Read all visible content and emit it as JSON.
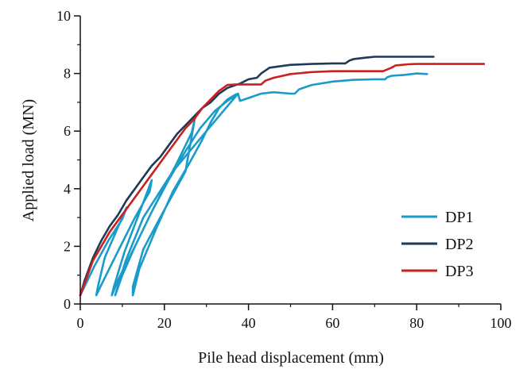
{
  "chart_data": {
    "type": "line",
    "title": "",
    "xlabel": "Pile head displacement (mm)",
    "ylabel": "Applied load  (MN)",
    "xlim": [
      0,
      100
    ],
    "ylim": [
      0,
      10
    ],
    "xticks": [
      0,
      20,
      40,
      60,
      80,
      100
    ],
    "yticks": [
      0,
      2,
      4,
      6,
      8,
      10
    ],
    "xtick_labels": [
      "0",
      "20",
      "40",
      "60",
      "80",
      "100"
    ],
    "ytick_labels": [
      "0",
      "2",
      "4",
      "6",
      "8",
      "10"
    ],
    "grid": false,
    "legend": {
      "position": "bottom-right"
    },
    "series": [
      {
        "name": "DP1",
        "color": "#1a9bc9",
        "x": [
          0,
          3.3,
          6.7,
          10,
          11,
          5.8,
          4.2,
          3.8,
          5.8,
          9.2,
          13,
          16.5,
          17,
          10.5,
          8,
          7.5,
          9.2,
          13,
          17,
          20.5,
          23,
          25,
          26.5,
          27.2,
          25,
          19,
          15,
          12.5,
          12.5,
          14,
          18,
          22,
          26,
          29,
          31,
          33,
          35,
          36.7,
          37.5,
          30,
          22,
          15,
          10.8,
          9.3,
          8.3,
          8.3,
          10,
          13,
          17,
          21,
          25,
          28.5,
          32,
          35,
          37.5,
          38,
          40,
          43,
          46,
          50,
          51,
          52,
          55,
          60,
          65,
          70,
          72.5,
          73,
          74,
          77,
          80,
          82.5
        ],
        "y": [
          0.3,
          1.3,
          2.2,
          2.95,
          3.35,
          1.6,
          0.6,
          0.3,
          0.9,
          1.9,
          3.0,
          3.9,
          4.3,
          1.8,
          0.6,
          0.3,
          0.9,
          2.0,
          3.2,
          4.2,
          4.9,
          5.5,
          5.95,
          6.4,
          4.6,
          3.0,
          1.9,
          0.6,
          0.3,
          1.2,
          2.6,
          3.9,
          4.9,
          5.7,
          6.3,
          6.8,
          7.1,
          7.25,
          7.3,
          6.0,
          4.6,
          3.0,
          1.5,
          0.8,
          0.3,
          0.3,
          1.0,
          2.0,
          3.2,
          4.3,
          5.3,
          6.1,
          6.7,
          7.05,
          7.3,
          7.05,
          7.15,
          7.3,
          7.35,
          7.3,
          7.3,
          7.45,
          7.6,
          7.72,
          7.78,
          7.8,
          7.8,
          7.87,
          7.92,
          7.95,
          8.0,
          7.98
        ]
      },
      {
        "name": "DP2",
        "color": "#1e3a55",
        "x": [
          0,
          1,
          2,
          3,
          5,
          7,
          9,
          11,
          13,
          15,
          17,
          19,
          21,
          23,
          25,
          27,
          29,
          31,
          33,
          35,
          36,
          38,
          40,
          42,
          43,
          45,
          50,
          55,
          60,
          63,
          64,
          65,
          68,
          70,
          75,
          80,
          84
        ],
        "y": [
          0.3,
          0.8,
          1.2,
          1.6,
          2.2,
          2.7,
          3.1,
          3.6,
          4.0,
          4.4,
          4.8,
          5.1,
          5.5,
          5.9,
          6.2,
          6.5,
          6.8,
          7.0,
          7.3,
          7.5,
          7.55,
          7.65,
          7.8,
          7.85,
          8.0,
          8.2,
          8.3,
          8.33,
          8.35,
          8.35,
          8.45,
          8.5,
          8.55,
          8.58,
          8.58,
          8.58,
          8.58
        ]
      },
      {
        "name": "DP3",
        "color": "#cc1f1f",
        "x": [
          0,
          1,
          2,
          3,
          5,
          7,
          9,
          11,
          13,
          15,
          17,
          19,
          21,
          23,
          25,
          27,
          29,
          31,
          33,
          35,
          37,
          40,
          43,
          44,
          46,
          50,
          55,
          60,
          65,
          70,
          72,
          74,
          75,
          78,
          80,
          85,
          90,
          96
        ],
        "y": [
          0.3,
          0.7,
          1.1,
          1.5,
          2.0,
          2.5,
          2.9,
          3.3,
          3.7,
          4.1,
          4.5,
          4.9,
          5.3,
          5.7,
          6.1,
          6.4,
          6.8,
          7.1,
          7.4,
          7.6,
          7.62,
          7.62,
          7.62,
          7.75,
          7.85,
          7.98,
          8.05,
          8.08,
          8.08,
          8.08,
          8.08,
          8.2,
          8.28,
          8.32,
          8.33,
          8.33,
          8.33,
          8.33
        ]
      }
    ]
  }
}
